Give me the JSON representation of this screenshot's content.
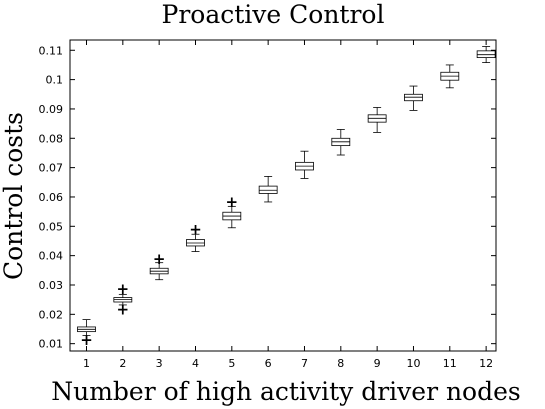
{
  "chart_data": {
    "type": "box",
    "title": "Proactive Control",
    "xlabel": "Number of high activity driver nodes",
    "ylabel": "Control costs",
    "categories": [
      "1",
      "2",
      "3",
      "4",
      "5",
      "6",
      "7",
      "8",
      "9",
      "10",
      "11",
      "12"
    ],
    "yticks": [
      "0.01",
      "0.02",
      "0.03",
      "0.04",
      "0.05",
      "0.06",
      "0.07",
      "0.08",
      "0.09",
      "0.1",
      "0.11"
    ],
    "ylim": [
      0.0075,
      0.1135
    ],
    "boxes": [
      {
        "category": "1",
        "whisker_low": 0.0128,
        "q1": 0.0141,
        "median": 0.0149,
        "q3": 0.0157,
        "whisker_high": 0.0182,
        "outliers": [
          0.0112
        ]
      },
      {
        "category": "2",
        "whisker_low": 0.0232,
        "q1": 0.0242,
        "median": 0.025,
        "q3": 0.0257,
        "whisker_high": 0.0268,
        "outliers": [
          0.0216,
          0.0287
        ]
      },
      {
        "category": "3",
        "whisker_low": 0.0318,
        "q1": 0.0338,
        "median": 0.0347,
        "q3": 0.0357,
        "whisker_high": 0.0376,
        "outliers": [
          0.0389
        ]
      },
      {
        "category": "4",
        "whisker_low": 0.0414,
        "q1": 0.0433,
        "median": 0.0443,
        "q3": 0.0455,
        "whisker_high": 0.0473,
        "outliers": [
          0.0489
        ]
      },
      {
        "category": "5",
        "whisker_low": 0.0495,
        "q1": 0.0522,
        "median": 0.0535,
        "q3": 0.0548,
        "whisker_high": 0.0568,
        "outliers": [
          0.0583
        ]
      },
      {
        "category": "6",
        "whisker_low": 0.0583,
        "q1": 0.0612,
        "median": 0.0623,
        "q3": 0.0637,
        "whisker_high": 0.067,
        "outliers": []
      },
      {
        "category": "7",
        "whisker_low": 0.0663,
        "q1": 0.0692,
        "median": 0.0705,
        "q3": 0.0718,
        "whisker_high": 0.0756,
        "outliers": []
      },
      {
        "category": "8",
        "whisker_low": 0.0743,
        "q1": 0.0775,
        "median": 0.0788,
        "q3": 0.08,
        "whisker_high": 0.083,
        "outliers": []
      },
      {
        "category": "9",
        "whisker_low": 0.082,
        "q1": 0.0855,
        "median": 0.0868,
        "q3": 0.088,
        "whisker_high": 0.0905,
        "outliers": []
      },
      {
        "category": "10",
        "whisker_low": 0.0895,
        "q1": 0.0928,
        "median": 0.094,
        "q3": 0.095,
        "whisker_high": 0.0978,
        "outliers": []
      },
      {
        "category": "11",
        "whisker_low": 0.0972,
        "q1": 0.0998,
        "median": 0.1012,
        "q3": 0.1025,
        "whisker_high": 0.105,
        "outliers": []
      },
      {
        "category": "12",
        "whisker_low": 0.1058,
        "q1": 0.1075,
        "median": 0.1085,
        "q3": 0.1098,
        "whisker_high": 0.1113,
        "outliers": []
      }
    ],
    "grid": false
  }
}
